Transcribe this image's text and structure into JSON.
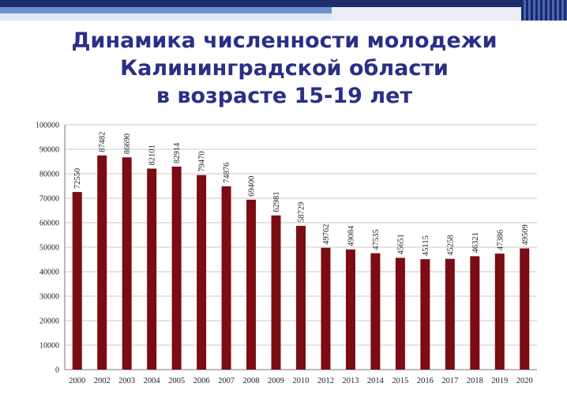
{
  "title_lines": [
    "Динамика численности молодежи",
    "Калининградской области",
    "в возрасте 15-19 лет"
  ],
  "colors": {
    "bar": "#7b0c14",
    "title": "#2b2f86",
    "grid": "#c8c8c8"
  },
  "chart_data": {
    "type": "bar",
    "title": "Динамика численности молодежи Калининградской области в возрасте 15-19 лет",
    "xlabel": "",
    "ylabel": "",
    "ylim": [
      0,
      100000
    ],
    "ytick_step": 10000,
    "yticks": [
      "0",
      "10000",
      "20000",
      "30000",
      "40000",
      "50000",
      "60000",
      "70000",
      "80000",
      "90000",
      "100000"
    ],
    "grid": true,
    "categories": [
      "2000",
      "2002",
      "2003",
      "2004",
      "2005",
      "2006",
      "2007",
      "2008",
      "2009",
      "2010",
      "2012",
      "2013",
      "2014",
      "2015",
      "2016",
      "2017",
      "2018",
      "2019",
      "2020"
    ],
    "values": [
      72550,
      87482,
      86690,
      82101,
      82914,
      79470,
      74876,
      69400,
      62981,
      58729,
      49762,
      49084,
      47535,
      45651,
      45115,
      45258,
      46321,
      47386,
      49509
    ],
    "data_labels": [
      "72550",
      "87482",
      "86690",
      "82101",
      "82914",
      "79470",
      "74876",
      "69400",
      "62981",
      "58729",
      "49762",
      "49084",
      "47535",
      "45651",
      "45115",
      "45258",
      "46321",
      "47386",
      "49509"
    ]
  }
}
